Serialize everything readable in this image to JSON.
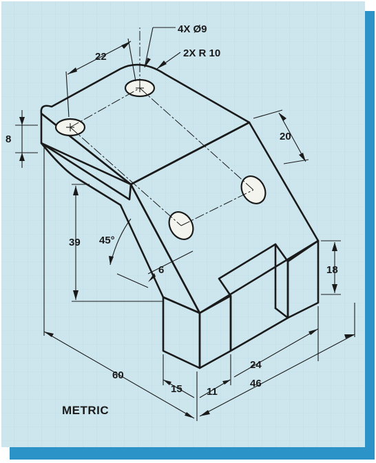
{
  "colors": {
    "paper": "#cde6ee",
    "frame_shadow": "#2c93c8",
    "line": "#1a1a1a"
  },
  "callouts": {
    "holes": "4X Ø9",
    "radius": "2X R 10"
  },
  "dimensions": {
    "d22": "22",
    "d8": "8",
    "d20": "20",
    "d39": "39",
    "angle": "45°",
    "d6": "6",
    "d18": "18",
    "d60": "60",
    "d15": "15",
    "d11": "11",
    "d24": "24",
    "d46": "46"
  },
  "label": "METRIC"
}
